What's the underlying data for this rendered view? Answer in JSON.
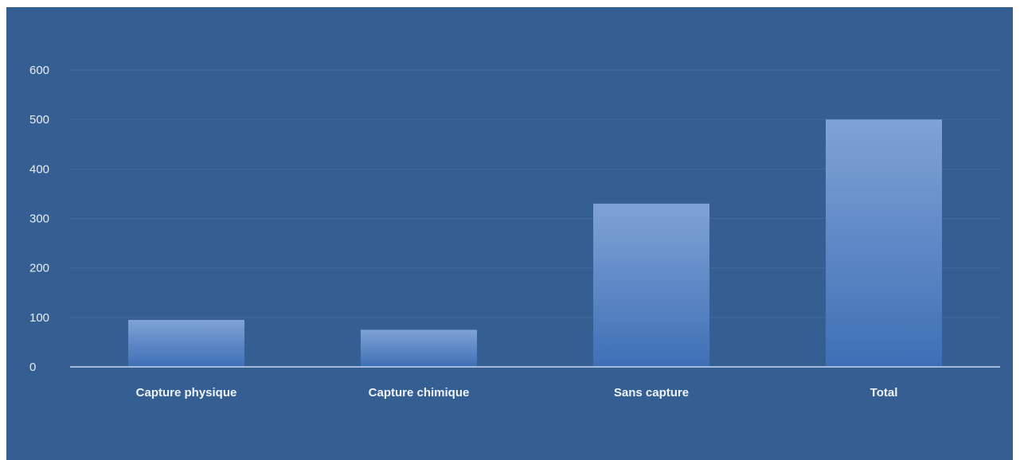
{
  "chart_data": {
    "type": "bar",
    "categories": [
      "Capture physique",
      "Capture chimique",
      "Sans capture",
      "Total"
    ],
    "values": [
      95,
      75,
      330,
      500
    ],
    "ylim": [
      0,
      600
    ],
    "yticks": [
      "0",
      "100",
      "200",
      "300",
      "400",
      "500",
      "600"
    ],
    "grid": true,
    "legend": "none",
    "colors": {
      "background": "#355f92",
      "bar_top": "#7fa3d6",
      "bar_bottom": "#3e6fb5",
      "grid": "#426b9e",
      "axis": "#c8d6ea"
    }
  }
}
